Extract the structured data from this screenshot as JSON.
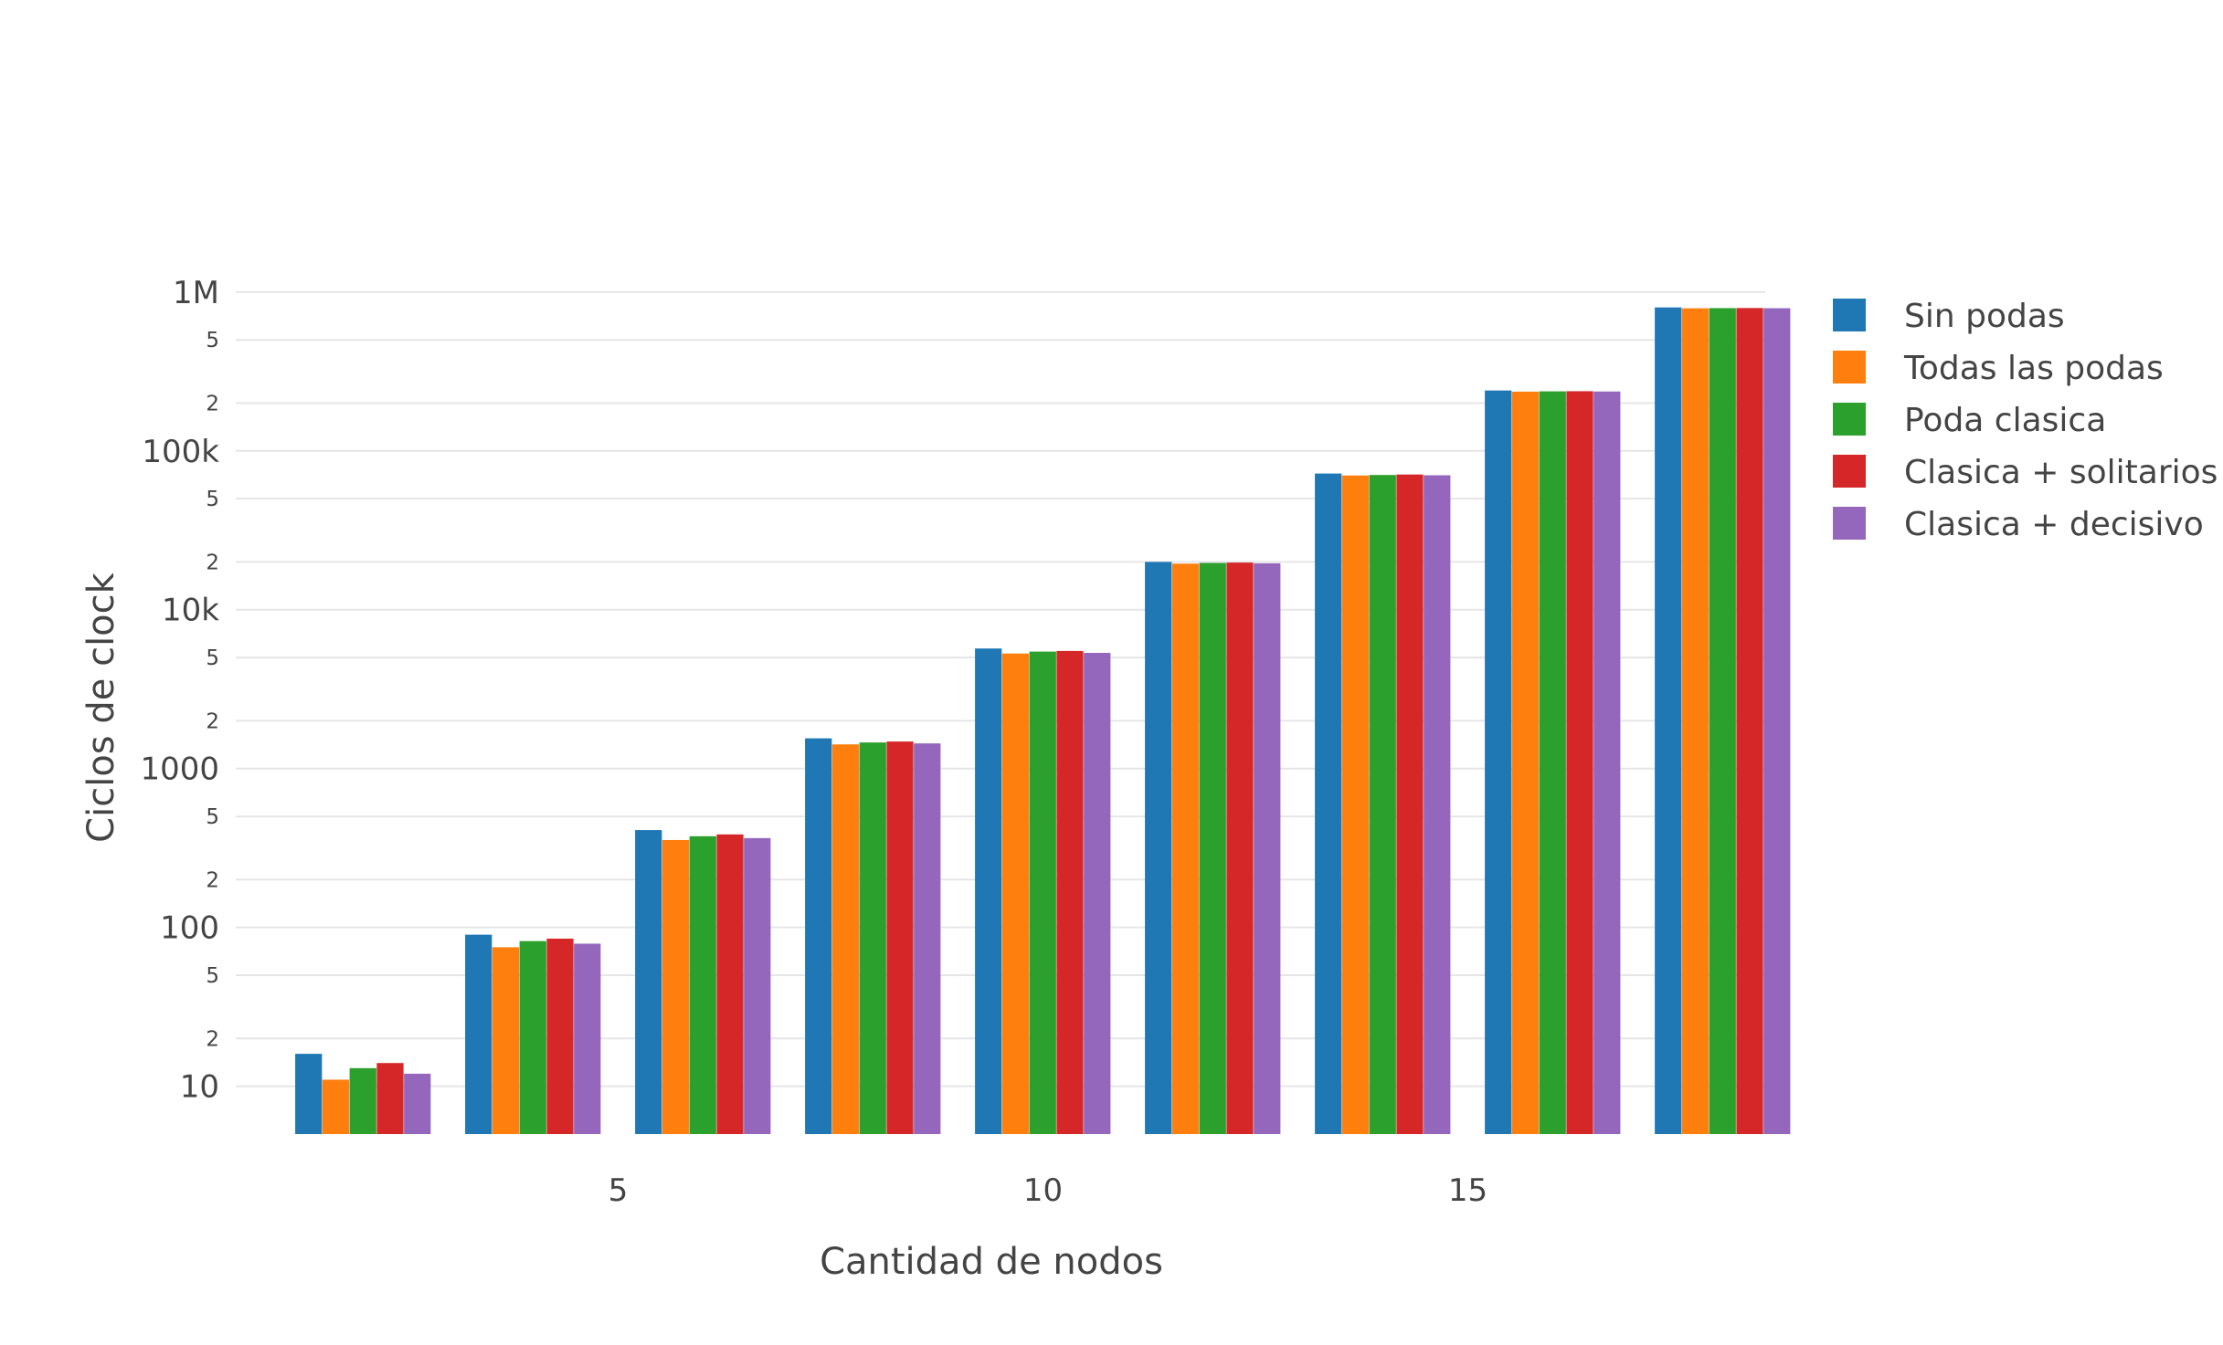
{
  "chart_data": {
    "type": "bar",
    "xlabel": "Cantidad de nodos",
    "ylabel": "Ciclos de clock",
    "y_scale": "log",
    "ylim": [
      5,
      1300000
    ],
    "xlim": [
      0.5,
      18.5
    ],
    "x": [
      2,
      4,
      6,
      8,
      10,
      12,
      14,
      16,
      18
    ],
    "x_tick_values": [
      5,
      10,
      15
    ],
    "x_tick_labels": [
      "5",
      "10",
      "15"
    ],
    "y_major_ticks": [
      {
        "value": 10,
        "label": "10"
      },
      {
        "value": 100,
        "label": "100"
      },
      {
        "value": 1000,
        "label": "1000"
      },
      {
        "value": 10000,
        "label": "10k"
      },
      {
        "value": 100000,
        "label": "100k"
      },
      {
        "value": 1000000,
        "label": "1M"
      }
    ],
    "y_minor_ticks": [
      {
        "value": 20,
        "label": "2"
      },
      {
        "value": 50,
        "label": "5"
      },
      {
        "value": 200,
        "label": "2"
      },
      {
        "value": 500,
        "label": "5"
      },
      {
        "value": 2000,
        "label": "2"
      },
      {
        "value": 5000,
        "label": "5"
      },
      {
        "value": 20000,
        "label": "2"
      },
      {
        "value": 50000,
        "label": "5"
      },
      {
        "value": 200000,
        "label": "2"
      },
      {
        "value": 500000,
        "label": "5"
      }
    ],
    "grid": true,
    "legend_position": "right",
    "series": [
      {
        "name": "Sin podas",
        "color": "#1f77b4",
        "values": [
          16,
          90,
          410,
          1550,
          5700,
          20000,
          72000,
          240000,
          800000
        ]
      },
      {
        "name": "Todas las podas",
        "color": "#ff7f0e",
        "values": [
          11,
          75,
          355,
          1420,
          5300,
          19500,
          70000,
          236000,
          790000
        ]
      },
      {
        "name": "Poda clasica",
        "color": "#2ca02c",
        "values": [
          13,
          82,
          375,
          1460,
          5450,
          19700,
          70500,
          237000,
          792000
        ]
      },
      {
        "name": "Clasica + solitarios",
        "color": "#d62728",
        "values": [
          14,
          85,
          385,
          1480,
          5500,
          19800,
          71000,
          237500,
          793000
        ]
      },
      {
        "name": "Clasica + decisivo",
        "color": "#9467bd",
        "values": [
          12,
          79,
          365,
          1440,
          5350,
          19600,
          70200,
          236500,
          791000
        ]
      }
    ]
  }
}
